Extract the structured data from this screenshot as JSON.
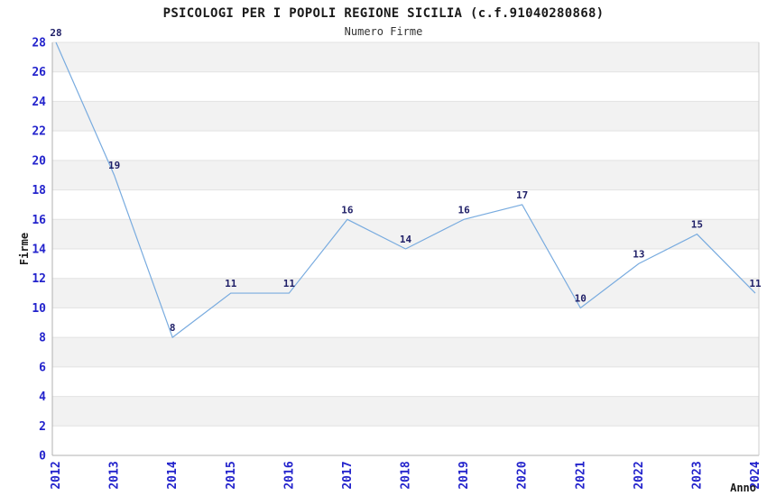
{
  "chart_data": {
    "type": "line",
    "title": "PSICOLOGI PER I POPOLI REGIONE SICILIA (c.f.91040280868)",
    "subtitle": "Numero Firme",
    "xlabel": "Anno",
    "ylabel": "Firme",
    "x": [
      "2012",
      "2013",
      "2014",
      "2015",
      "2016",
      "2017",
      "2018",
      "2019",
      "2020",
      "2021",
      "2022",
      "2023",
      "2024"
    ],
    "series": [
      {
        "name": "Numero Firme",
        "values": [
          28,
          19,
          8,
          11,
          11,
          16,
          14,
          16,
          17,
          10,
          13,
          15,
          11
        ]
      }
    ],
    "ylim": [
      0,
      28
    ],
    "ytick_step": 2,
    "grid": "horizontal",
    "legend": "none",
    "point_labels": true,
    "band_fill": "alternating",
    "style": {
      "line_color": "#78abdf",
      "tick_label_color": "#2323cc",
      "point_label_color": "#202068",
      "band_color": "#f2f2f2",
      "grid_color": "#e2e2e2",
      "axis_color": "#b0b0b0",
      "right_border_color": "#cccccc",
      "title_color": "#1a1a1a",
      "subtitle_color": "#333333",
      "background_color": "#ffffff"
    }
  }
}
